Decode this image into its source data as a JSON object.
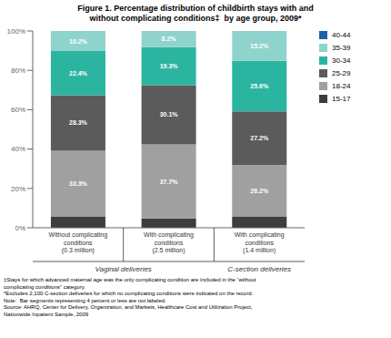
{
  "chart_data": {
    "type": "bar",
    "stacked": true,
    "title": "Figure 1. Percentage distribution of childbirth stays with and\nwithout complicating conditions‡  by age group, 2009*",
    "categories": [
      "Without complicating\nconditions\n(0.3 million)",
      "With complicating\nconditions\n(2.5 million)",
      "With complicating\nconditions\n(1.4 million)"
    ],
    "group_labels": [
      "Vaginal deliveries",
      "C-section deliveries"
    ],
    "series": [
      {
        "name": "15-17",
        "color": "#3d3d3d",
        "values": [
          5.8,
          4.7,
          5.8
        ],
        "value_labels": [
          null,
          null,
          null
        ]
      },
      {
        "name": "18-24",
        "color": "#a0a0a0",
        "values": [
          33.3,
          37.7,
          26.2
        ],
        "value_labels": [
          "33.3%",
          "37.7%",
          "26.2%"
        ]
      },
      {
        "name": "25-29",
        "color": "#5b5b5b",
        "values": [
          28.3,
          30.1,
          27.2
        ],
        "value_labels": [
          "28.3%",
          "30.1%",
          "27.2%"
        ]
      },
      {
        "name": "30-34",
        "color": "#2bb5a0",
        "values": [
          22.4,
          19.3,
          25.6
        ],
        "value_labels": [
          "22.4%",
          "19.3%",
          "25.6%"
        ]
      },
      {
        "name": "35-39",
        "color": "#8fd4cc",
        "values": [
          10.2,
          8.2,
          15.2
        ],
        "value_labels": [
          "10.2%",
          "8.2%",
          "15.2%"
        ]
      },
      {
        "name": "40-44",
        "color": "#1f5fa6",
        "values": [
          0.0,
          0.0,
          0.0
        ],
        "value_labels": [
          null,
          null,
          null
        ]
      }
    ],
    "ylim": [
      0,
      100
    ],
    "yticks": [
      {
        "value": 0,
        "label": "0%"
      },
      {
        "value": 20,
        "label": "20%"
      },
      {
        "value": 40,
        "label": "40%"
      },
      {
        "value": 60,
        "label": "60%"
      },
      {
        "value": 80,
        "label": "80%"
      },
      {
        "value": 100,
        "label": "100%"
      }
    ],
    "grid": false,
    "legend": "right",
    "data_labels": true,
    "annotations": [
      "‡Stays for which advanced maternal age was the only complicating condition are included in the “without",
      "complicating conditions” category.",
      "*Excludes 2,100 C-section deliveries for which no complicating conditions were indicated on the record.",
      "Note:  Bar segments representing 4 percent or less are not labeled.",
      "Source: AHRQ, Center for Delivery, Organization, and Markets, Healthcare Cost and Utilization Project,",
      "Nationwide Inpatient Sample, 2009"
    ]
  }
}
